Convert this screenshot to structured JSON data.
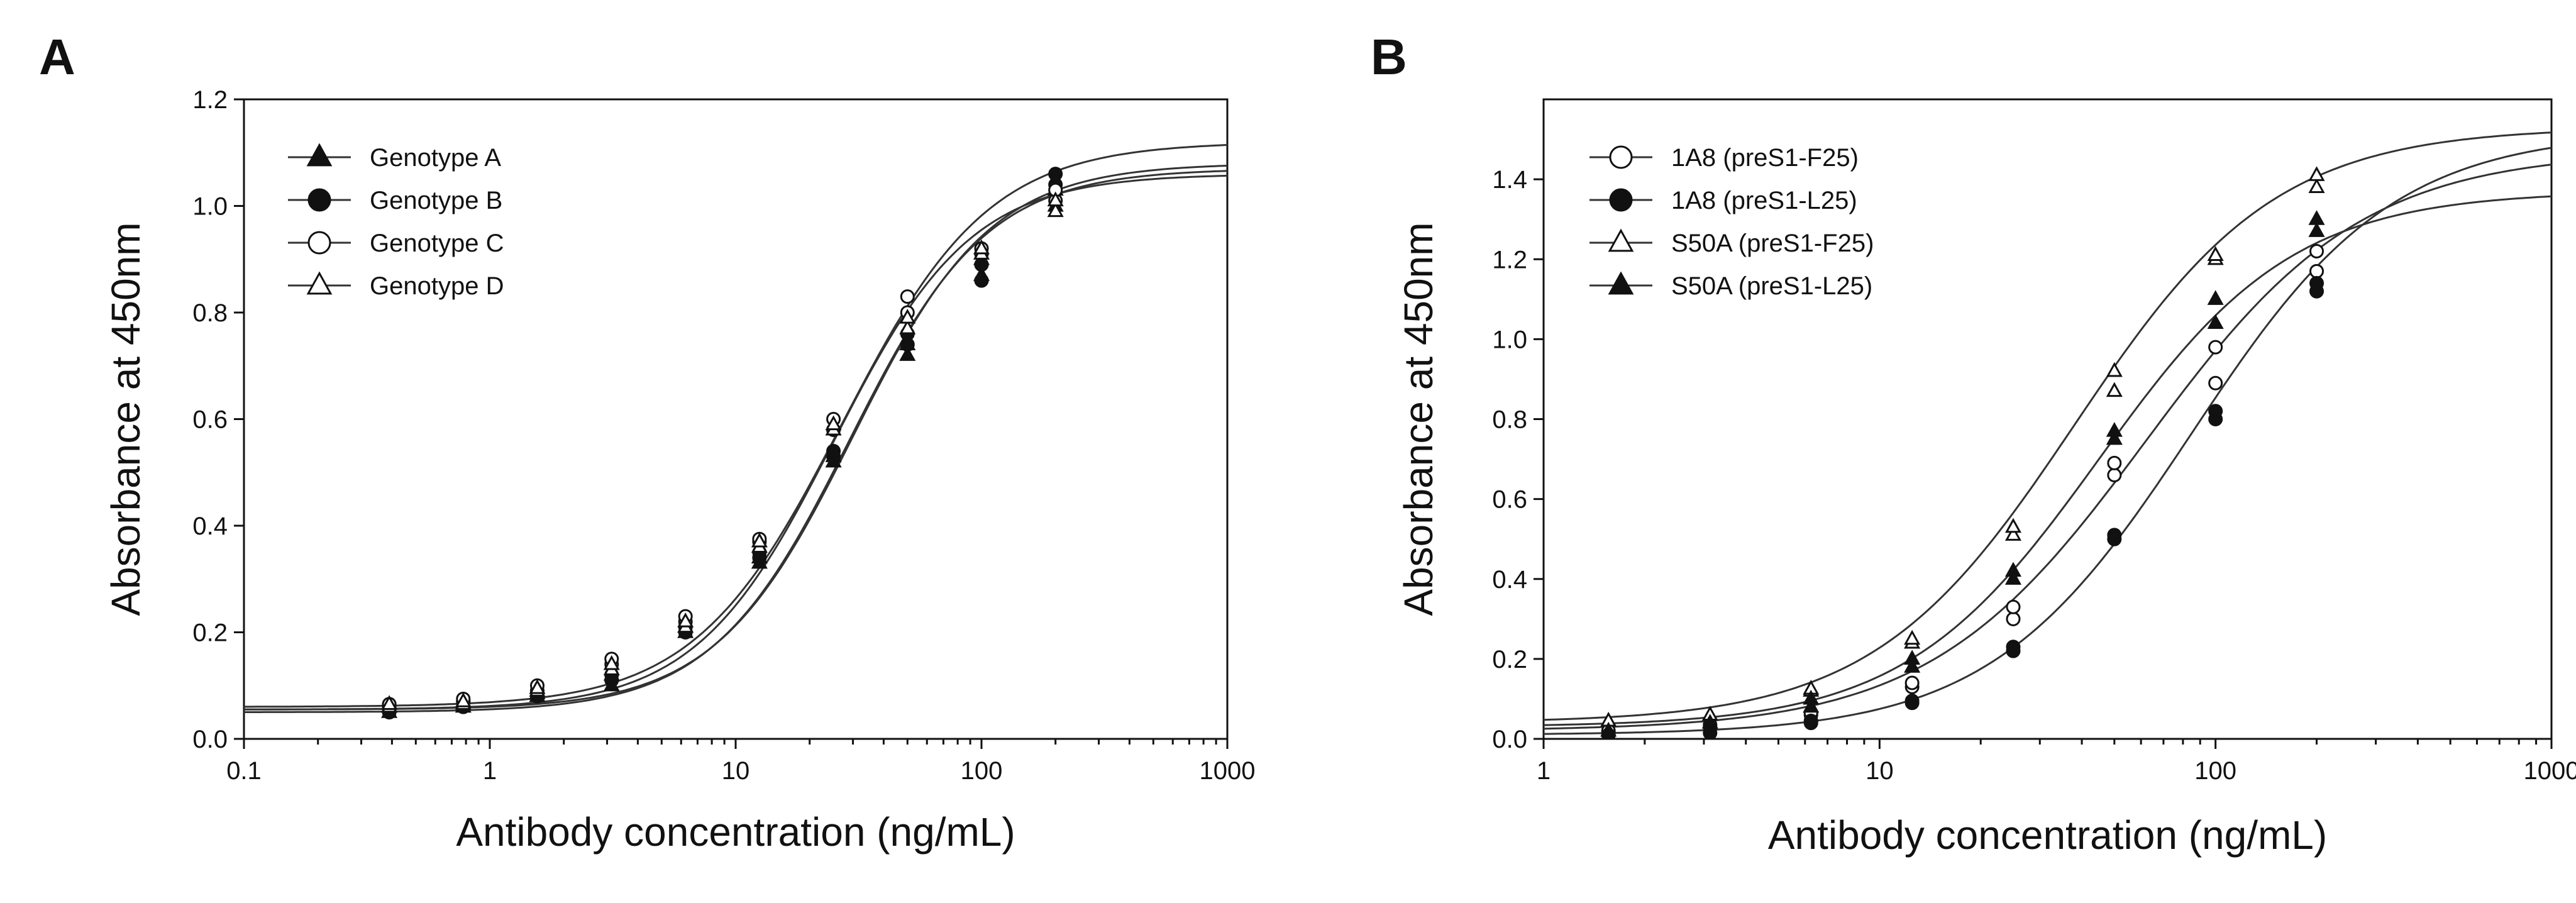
{
  "chart_data": [
    {
      "panel_label": "A",
      "type": "scatter",
      "xscale": "log",
      "xlim": [
        0.1,
        1000
      ],
      "ylim": [
        0.0,
        1.2
      ],
      "xticks": [
        0.1,
        1,
        10,
        100,
        1000
      ],
      "xtick_labels": [
        "0.1",
        "1",
        "10",
        "100",
        "1000"
      ],
      "yticks": [
        0.0,
        0.2,
        0.4,
        0.6,
        0.8,
        1.0,
        1.2
      ],
      "ytick_labels": [
        "0.0",
        "0.2",
        "0.4",
        "0.6",
        "0.8",
        "1.0",
        "1.2"
      ],
      "xlabel": "Antibody concentration (ng/mL)",
      "ylabel": "Absorbance at 450nm",
      "legend_position": "top-left",
      "grid": false,
      "series": [
        {
          "name": "Genotype A",
          "marker": "triangle",
          "filled": true,
          "fit": {
            "bottom": 0.05,
            "top": 1.07,
            "ec50": 29,
            "hill": 1.55
          },
          "points": [
            [
              0.39,
              0.05
            ],
            [
              0.39,
              0.06
            ],
            [
              0.78,
              0.06
            ],
            [
              0.78,
              0.065
            ],
            [
              1.56,
              0.08
            ],
            [
              1.56,
              0.085
            ],
            [
              3.13,
              0.1
            ],
            [
              3.13,
              0.12
            ],
            [
              6.25,
              0.2
            ],
            [
              6.25,
              0.21
            ],
            [
              12.5,
              0.33
            ],
            [
              12.5,
              0.34
            ],
            [
              25,
              0.52
            ],
            [
              25,
              0.53
            ],
            [
              50,
              0.72
            ],
            [
              50,
              0.74
            ],
            [
              100,
              0.87
            ],
            [
              100,
              0.9
            ],
            [
              200,
              1.0
            ],
            [
              200,
              1.03
            ]
          ]
        },
        {
          "name": "Genotype B",
          "marker": "circle",
          "filled": true,
          "fit": {
            "bottom": 0.055,
            "top": 1.08,
            "ec50": 30,
            "hill": 1.55
          },
          "points": [
            [
              0.39,
              0.05
            ],
            [
              0.39,
              0.065
            ],
            [
              0.78,
              0.06
            ],
            [
              0.78,
              0.07
            ],
            [
              1.56,
              0.08
            ],
            [
              1.56,
              0.09
            ],
            [
              3.13,
              0.11
            ],
            [
              3.13,
              0.12
            ],
            [
              6.25,
              0.2
            ],
            [
              6.25,
              0.21
            ],
            [
              12.5,
              0.34
            ],
            [
              12.5,
              0.35
            ],
            [
              25,
              0.53
            ],
            [
              25,
              0.54
            ],
            [
              50,
              0.74
            ],
            [
              50,
              0.76
            ],
            [
              100,
              0.86
            ],
            [
              100,
              0.89
            ],
            [
              200,
              1.04
            ],
            [
              200,
              1.06
            ]
          ]
        },
        {
          "name": "Genotype C",
          "marker": "circle",
          "filled": false,
          "fit": {
            "bottom": 0.06,
            "top": 1.12,
            "ec50": 27,
            "hill": 1.45
          },
          "points": [
            [
              0.39,
              0.06
            ],
            [
              0.39,
              0.065
            ],
            [
              0.78,
              0.07
            ],
            [
              0.78,
              0.075
            ],
            [
              1.56,
              0.09
            ],
            [
              1.56,
              0.1
            ],
            [
              3.13,
              0.14
            ],
            [
              3.13,
              0.15
            ],
            [
              6.25,
              0.22
            ],
            [
              6.25,
              0.23
            ],
            [
              12.5,
              0.37
            ],
            [
              12.5,
              0.375
            ],
            [
              25,
              0.58
            ],
            [
              25,
              0.6
            ],
            [
              50,
              0.8
            ],
            [
              50,
              0.83
            ],
            [
              100,
              0.91
            ],
            [
              100,
              0.92
            ],
            [
              200,
              1.01
            ],
            [
              200,
              1.03
            ]
          ]
        },
        {
          "name": "Genotype D",
          "marker": "triangle",
          "filled": false,
          "fit": {
            "bottom": 0.055,
            "top": 1.06,
            "ec50": 25,
            "hill": 1.55
          },
          "points": [
            [
              0.39,
              0.06
            ],
            [
              0.39,
              0.065
            ],
            [
              0.78,
              0.065
            ],
            [
              0.78,
              0.07
            ],
            [
              1.56,
              0.09
            ],
            [
              1.56,
              0.095
            ],
            [
              3.13,
              0.13
            ],
            [
              3.13,
              0.14
            ],
            [
              6.25,
              0.21
            ],
            [
              6.25,
              0.22
            ],
            [
              12.5,
              0.36
            ],
            [
              12.5,
              0.37
            ],
            [
              25,
              0.58
            ],
            [
              25,
              0.59
            ],
            [
              50,
              0.77
            ],
            [
              50,
              0.79
            ],
            [
              100,
              0.91
            ],
            [
              100,
              0.92
            ],
            [
              200,
              0.99
            ],
            [
              200,
              1.01
            ]
          ]
        }
      ]
    },
    {
      "panel_label": "B",
      "type": "scatter",
      "xscale": "log",
      "xlim": [
        1,
        1000
      ],
      "ylim": [
        0.0,
        1.6
      ],
      "xticks": [
        1,
        10,
        100,
        1000
      ],
      "xtick_labels": [
        "1",
        "10",
        "100",
        "1000"
      ],
      "yticks": [
        0.0,
        0.2,
        0.4,
        0.6,
        0.8,
        1.0,
        1.2,
        1.4
      ],
      "ytick_labels": [
        "0.0",
        "0.2",
        "0.4",
        "0.6",
        "0.8",
        "1.0",
        "1.2",
        "1.4"
      ],
      "xlabel": "Antibody concentration (ng/mL)",
      "ylabel": "Absorbance at 450nm",
      "legend_position": "top-left",
      "grid": false,
      "series": [
        {
          "name": "1A8 (preS1-F25)",
          "marker": "circle",
          "filled": false,
          "fit": {
            "bottom": 0.02,
            "top": 1.47,
            "ec50": 62,
            "hill": 1.35
          },
          "points": [
            [
              1.56,
              0.02
            ],
            [
              3.13,
              0.03
            ],
            [
              3.13,
              0.035
            ],
            [
              6.25,
              0.06
            ],
            [
              6.25,
              0.065
            ],
            [
              12.5,
              0.13
            ],
            [
              12.5,
              0.14
            ],
            [
              25,
              0.3
            ],
            [
              25,
              0.33
            ],
            [
              50,
              0.66
            ],
            [
              50,
              0.69
            ],
            [
              100,
              0.89
            ],
            [
              100,
              0.98
            ],
            [
              200,
              1.17
            ],
            [
              200,
              1.22
            ]
          ]
        },
        {
          "name": "1A8 (preS1-L25)",
          "marker": "circle",
          "filled": true,
          "fit": {
            "bottom": 0.01,
            "top": 1.52,
            "ec50": 85,
            "hill": 1.45
          },
          "points": [
            [
              1.56,
              0.01
            ],
            [
              3.13,
              0.015
            ],
            [
              6.25,
              0.04
            ],
            [
              6.25,
              0.045
            ],
            [
              12.5,
              0.09
            ],
            [
              12.5,
              0.095
            ],
            [
              25,
              0.22
            ],
            [
              25,
              0.23
            ],
            [
              50,
              0.5
            ],
            [
              50,
              0.51
            ],
            [
              100,
              0.8
            ],
            [
              100,
              0.82
            ],
            [
              200,
              1.12
            ],
            [
              200,
              1.14
            ]
          ]
        },
        {
          "name": "S50A (preS1-F25)",
          "marker": "triangle",
          "filled": false,
          "fit": {
            "bottom": 0.04,
            "top": 1.53,
            "ec50": 38,
            "hill": 1.45
          },
          "points": [
            [
              1.56,
              0.045
            ],
            [
              3.13,
              0.06
            ],
            [
              6.25,
              0.12
            ],
            [
              6.25,
              0.125
            ],
            [
              12.5,
              0.24
            ],
            [
              12.5,
              0.25
            ],
            [
              25,
              0.51
            ],
            [
              25,
              0.53
            ],
            [
              50,
              0.87
            ],
            [
              50,
              0.92
            ],
            [
              100,
              1.2
            ],
            [
              100,
              1.21
            ],
            [
              200,
              1.38
            ],
            [
              200,
              1.41
            ]
          ]
        },
        {
          "name": "S50A (preS1-L25)",
          "marker": "triangle",
          "filled": true,
          "fit": {
            "bottom": 0.03,
            "top": 1.37,
            "ec50": 45,
            "hill": 1.5
          },
          "points": [
            [
              1.56,
              0.02
            ],
            [
              3.13,
              0.04
            ],
            [
              6.25,
              0.08
            ],
            [
              6.25,
              0.1
            ],
            [
              12.5,
              0.18
            ],
            [
              12.5,
              0.2
            ],
            [
              25,
              0.4
            ],
            [
              25,
              0.42
            ],
            [
              50,
              0.75
            ],
            [
              50,
              0.77
            ],
            [
              100,
              1.04
            ],
            [
              100,
              1.1
            ],
            [
              200,
              1.27
            ],
            [
              200,
              1.3
            ]
          ]
        }
      ]
    }
  ]
}
